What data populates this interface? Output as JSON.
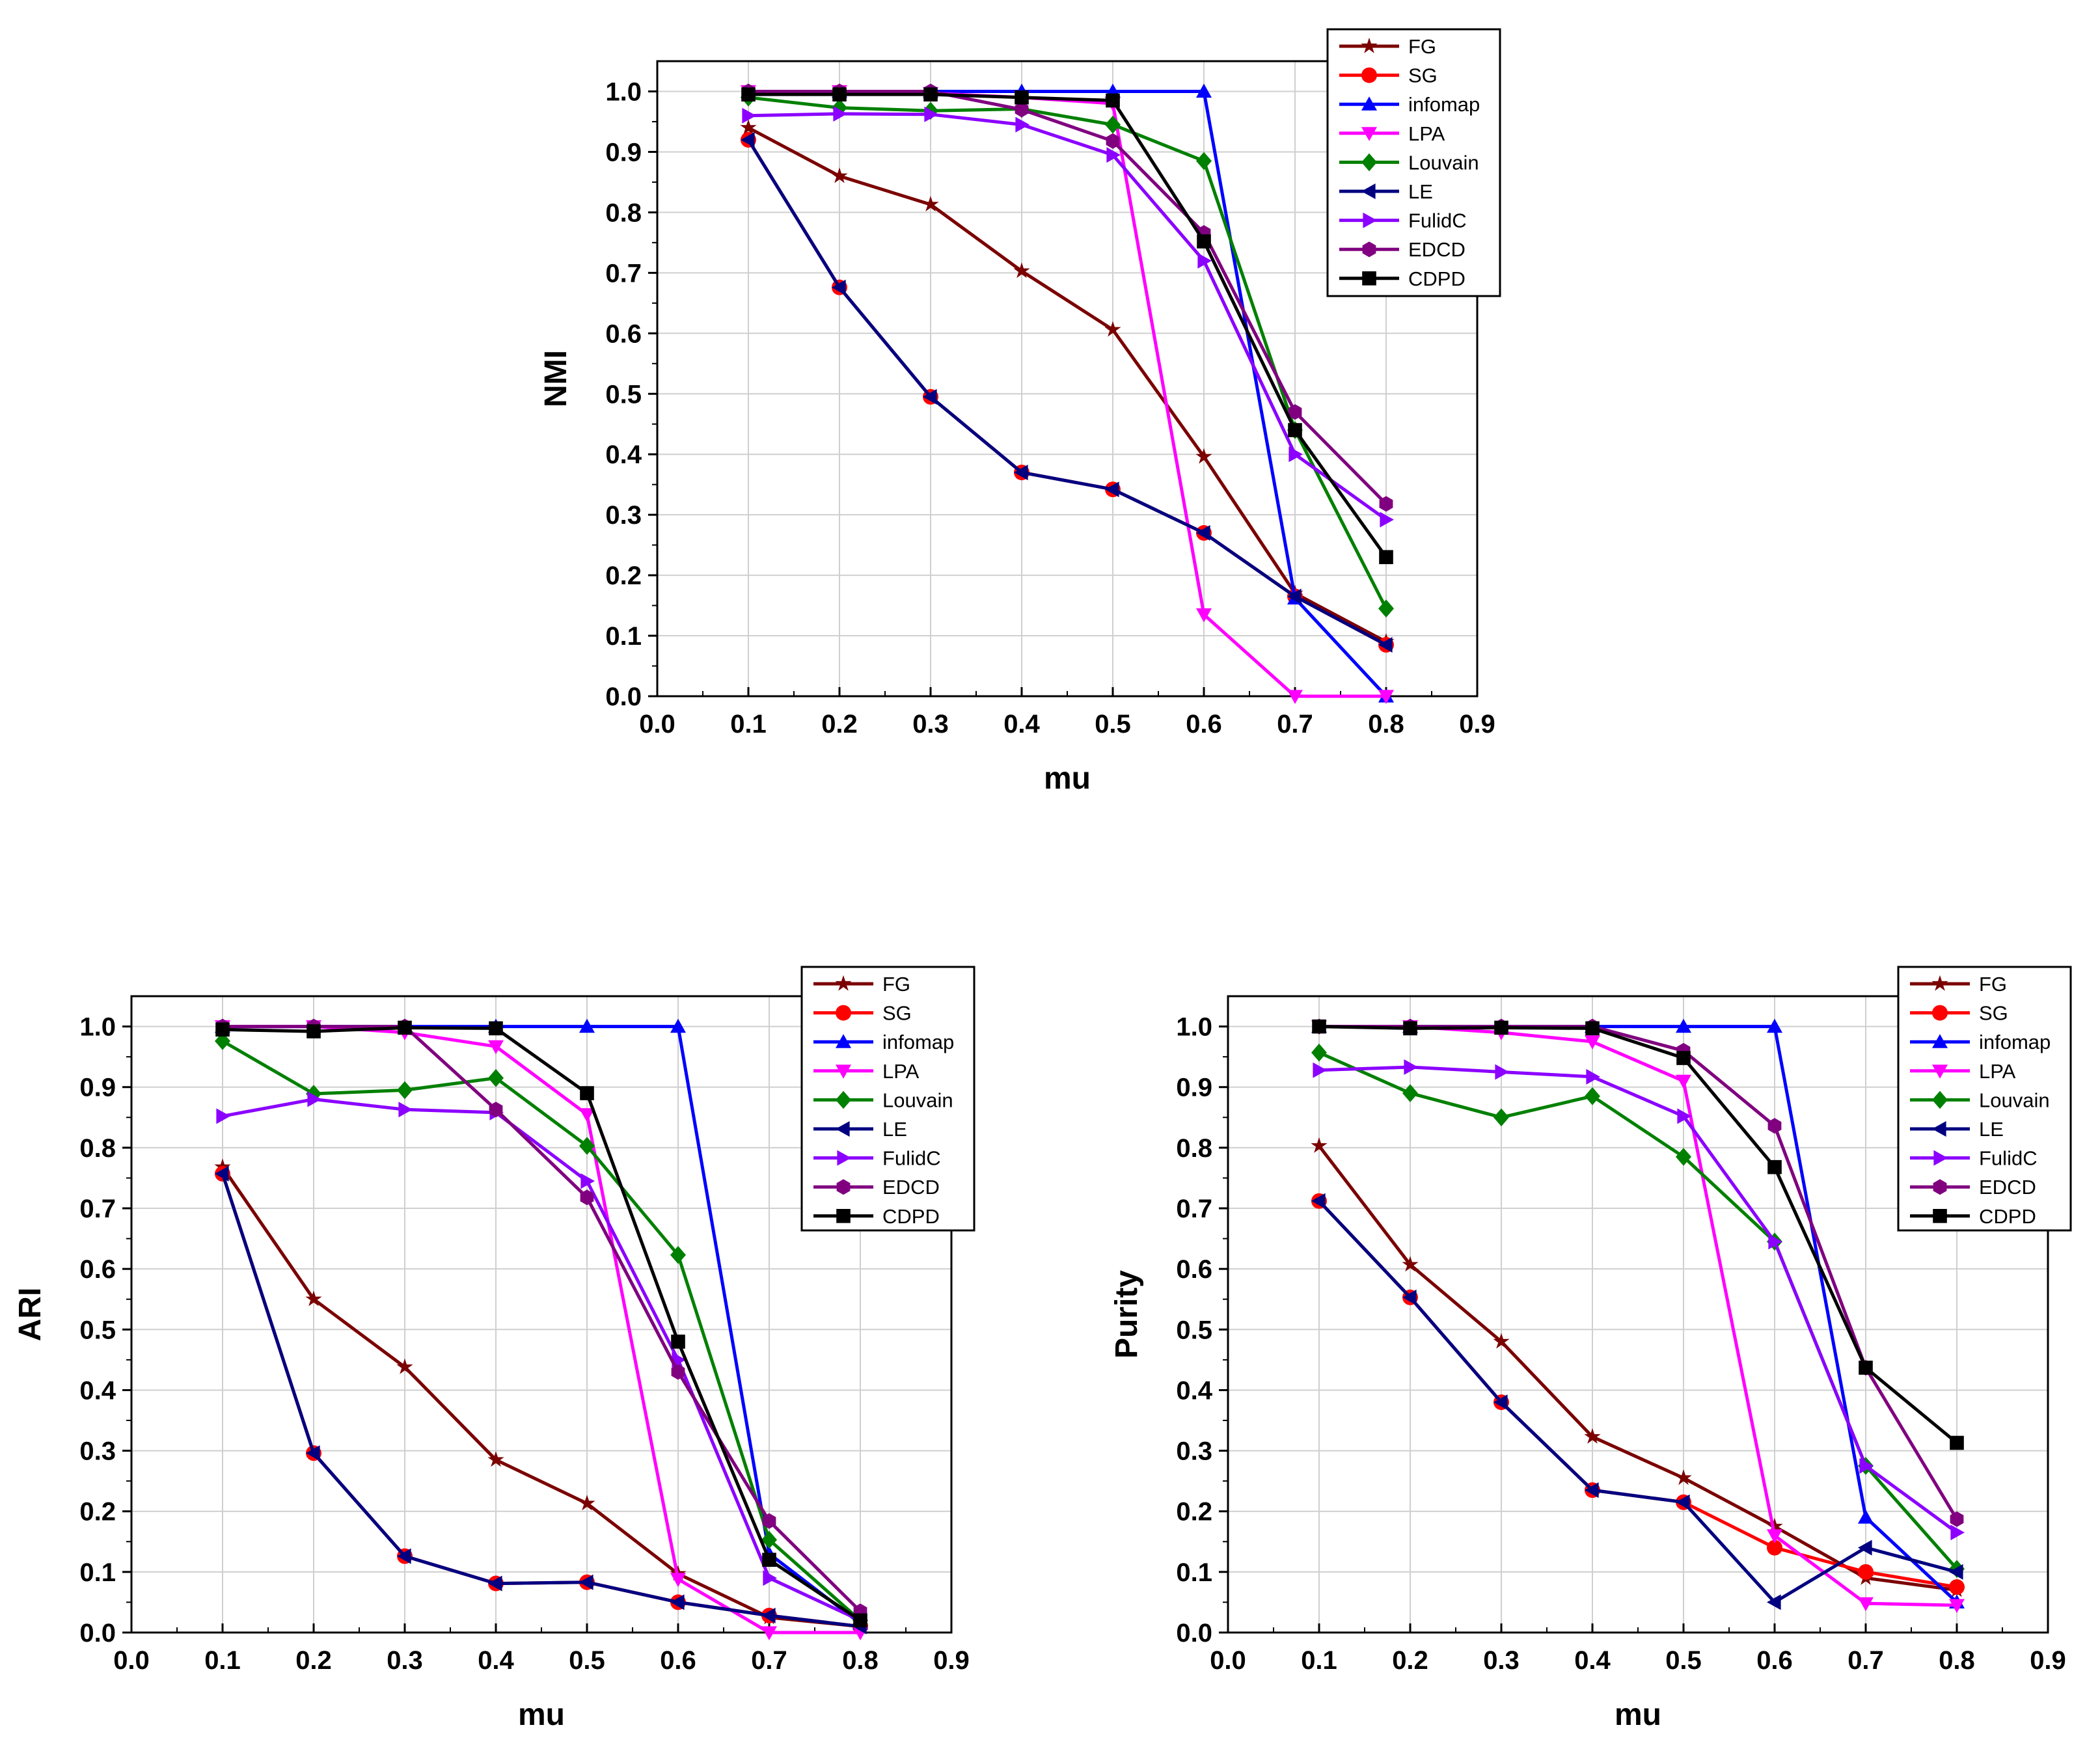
{
  "chart_data": [
    {
      "type": "line",
      "title": "",
      "xlabel": "mu",
      "ylabel": "NMI",
      "xlim": [
        0.0,
        0.9
      ],
      "ylim": [
        0.0,
        1.05
      ],
      "grid": true,
      "legend": "top-right",
      "x_ticks": [
        "0.0",
        "0.1",
        "0.2",
        "0.3",
        "0.4",
        "0.5",
        "0.6",
        "0.7",
        "0.8",
        "0.9"
      ],
      "y_ticks": [
        "0.0",
        "0.1",
        "0.2",
        "0.3",
        "0.4",
        "0.5",
        "0.6",
        "0.7",
        "0.8",
        "0.9",
        "1.0"
      ],
      "x": [
        0.1,
        0.2,
        0.3,
        0.4,
        0.5,
        0.6,
        0.7,
        0.8
      ],
      "series": [
        {
          "name": "FG",
          "color": "#7b0000",
          "marker": "star",
          "values": [
            0.94,
            0.86,
            0.813,
            0.703,
            0.606,
            0.396,
            0.17,
            0.09
          ]
        },
        {
          "name": "SG",
          "color": "#ff0000",
          "marker": "circle",
          "values": [
            0.92,
            0.676,
            0.495,
            0.37,
            0.342,
            0.27,
            0.165,
            0.085
          ]
        },
        {
          "name": "infomap",
          "color": "#0000ff",
          "marker": "triangle-up",
          "values": [
            1.0,
            1.0,
            1.0,
            1.0,
            1.0,
            1.0,
            0.162,
            0.0
          ]
        },
        {
          "name": "LPA",
          "color": "#ff00ff",
          "marker": "triangle-down",
          "values": [
            1.0,
            1.0,
            0.997,
            0.99,
            0.98,
            0.135,
            0.0,
            0.0
          ]
        },
        {
          "name": "Louvain",
          "color": "#008000",
          "marker": "diamond",
          "values": [
            0.99,
            0.973,
            0.968,
            0.971,
            0.945,
            0.885,
            0.44,
            0.145
          ]
        },
        {
          "name": "LE",
          "color": "#000080",
          "marker": "triangle-left",
          "values": [
            0.92,
            0.676,
            0.495,
            0.37,
            0.342,
            0.27,
            0.165,
            0.085
          ]
        },
        {
          "name": "FulidC",
          "color": "#8b00ff",
          "marker": "triangle-right",
          "values": [
            0.96,
            0.963,
            0.962,
            0.945,
            0.895,
            0.72,
            0.4,
            0.292
          ]
        },
        {
          "name": "EDCD",
          "color": "#800080",
          "marker": "hexagon",
          "values": [
            1.0,
            1.0,
            1.0,
            0.97,
            0.918,
            0.766,
            0.47,
            0.318
          ]
        },
        {
          "name": "CDPD",
          "color": "#000000",
          "marker": "square",
          "values": [
            0.995,
            0.995,
            0.995,
            0.99,
            0.985,
            0.752,
            0.44,
            0.23
          ]
        }
      ]
    },
    {
      "type": "line",
      "title": "",
      "xlabel": "mu",
      "ylabel": "ARI",
      "xlim": [
        0.0,
        0.9
      ],
      "ylim": [
        0.0,
        1.05
      ],
      "grid": true,
      "legend": "top-right",
      "x_ticks": [
        "0.0",
        "0.1",
        "0.2",
        "0.3",
        "0.4",
        "0.5",
        "0.6",
        "0.7",
        "0.8",
        "0.9"
      ],
      "y_ticks": [
        "0.0",
        "0.1",
        "0.2",
        "0.3",
        "0.4",
        "0.5",
        "0.6",
        "0.7",
        "0.8",
        "0.9",
        "1.0"
      ],
      "x": [
        0.1,
        0.2,
        0.3,
        0.4,
        0.5,
        0.6,
        0.7,
        0.8
      ],
      "series": [
        {
          "name": "FG",
          "color": "#7b0000",
          "marker": "star",
          "values": [
            0.768,
            0.55,
            0.438,
            0.285,
            0.213,
            0.097,
            0.025,
            0.01
          ]
        },
        {
          "name": "SG",
          "color": "#ff0000",
          "marker": "circle",
          "values": [
            0.757,
            0.296,
            0.126,
            0.081,
            0.083,
            0.05,
            0.028,
            0.01
          ]
        },
        {
          "name": "infomap",
          "color": "#0000ff",
          "marker": "triangle-up",
          "values": [
            1.0,
            1.0,
            1.0,
            1.0,
            1.0,
            1.0,
            0.13,
            0.015
          ]
        },
        {
          "name": "LPA",
          "color": "#ff00ff",
          "marker": "triangle-down",
          "values": [
            1.0,
            1.0,
            0.99,
            0.967,
            0.855,
            0.088,
            0.0,
            0.0
          ]
        },
        {
          "name": "Louvain",
          "color": "#008000",
          "marker": "diamond",
          "values": [
            0.976,
            0.889,
            0.895,
            0.915,
            0.803,
            0.623,
            0.153,
            0.02
          ]
        },
        {
          "name": "LE",
          "color": "#000080",
          "marker": "triangle-left",
          "values": [
            0.757,
            0.296,
            0.126,
            0.081,
            0.083,
            0.05,
            0.028,
            0.01
          ]
        },
        {
          "name": "FulidC",
          "color": "#8b00ff",
          "marker": "triangle-right",
          "values": [
            0.852,
            0.88,
            0.863,
            0.858,
            0.745,
            0.45,
            0.09,
            0.02
          ]
        },
        {
          "name": "EDCD",
          "color": "#800080",
          "marker": "hexagon",
          "values": [
            1.0,
            1.0,
            1.0,
            0.863,
            0.718,
            0.43,
            0.184,
            0.035
          ]
        },
        {
          "name": "CDPD",
          "color": "#000000",
          "marker": "square",
          "values": [
            0.995,
            0.992,
            0.998,
            0.997,
            0.89,
            0.48,
            0.12,
            0.02
          ]
        }
      ]
    },
    {
      "type": "line",
      "title": "",
      "xlabel": "mu",
      "ylabel": "Purity",
      "xlim": [
        0.0,
        0.9
      ],
      "ylim": [
        0.0,
        1.05
      ],
      "grid": true,
      "legend": "top-right",
      "x_ticks": [
        "0.0",
        "0.1",
        "0.2",
        "0.3",
        "0.4",
        "0.5",
        "0.6",
        "0.7",
        "0.8",
        "0.9"
      ],
      "y_ticks": [
        "0.0",
        "0.1",
        "0.2",
        "0.3",
        "0.4",
        "0.5",
        "0.6",
        "0.7",
        "0.8",
        "0.9",
        "1.0"
      ],
      "x": [
        0.1,
        0.2,
        0.3,
        0.4,
        0.5,
        0.6,
        0.7,
        0.8
      ],
      "series": [
        {
          "name": "FG",
          "color": "#7b0000",
          "marker": "star",
          "values": [
            0.803,
            0.607,
            0.48,
            0.323,
            0.255,
            0.175,
            0.09,
            0.07
          ]
        },
        {
          "name": "SG",
          "color": "#ff0000",
          "marker": "circle",
          "values": [
            0.712,
            0.553,
            0.38,
            0.235,
            0.215,
            0.14,
            0.1,
            0.075
          ]
        },
        {
          "name": "infomap",
          "color": "#0000ff",
          "marker": "triangle-up",
          "values": [
            1.0,
            1.0,
            1.0,
            1.0,
            1.0,
            1.0,
            0.19,
            0.05
          ]
        },
        {
          "name": "LPA",
          "color": "#ff00ff",
          "marker": "triangle-down",
          "values": [
            1.0,
            1.0,
            0.99,
            0.975,
            0.91,
            0.16,
            0.048,
            0.045
          ]
        },
        {
          "name": "Louvain",
          "color": "#008000",
          "marker": "diamond",
          "values": [
            0.957,
            0.89,
            0.85,
            0.885,
            0.785,
            0.645,
            0.275,
            0.105
          ]
        },
        {
          "name": "LE",
          "color": "#000080",
          "marker": "triangle-left",
          "values": [
            0.712,
            0.553,
            0.38,
            0.235,
            0.215,
            0.05,
            0.14,
            0.1
          ]
        },
        {
          "name": "FulidC",
          "color": "#8b00ff",
          "marker": "triangle-right",
          "values": [
            0.928,
            0.933,
            0.925,
            0.917,
            0.852,
            0.645,
            0.275,
            0.165
          ]
        },
        {
          "name": "EDCD",
          "color": "#800080",
          "marker": "hexagon",
          "values": [
            1.0,
            1.0,
            1.0,
            1.0,
            0.96,
            0.836,
            0.437,
            0.187
          ]
        },
        {
          "name": "CDPD",
          "color": "#000000",
          "marker": "square",
          "values": [
            1.0,
            0.997,
            0.998,
            0.997,
            0.948,
            0.768,
            0.437,
            0.313
          ]
        }
      ]
    }
  ]
}
